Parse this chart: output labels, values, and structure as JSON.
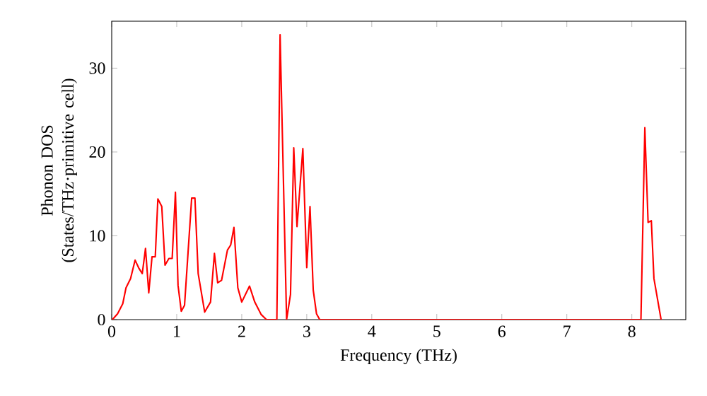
{
  "chart_data": {
    "type": "line",
    "xlabel": "Frequency (THz)",
    "ylabel": "Phonon DOS (States/THz·primitive cell)",
    "xlim": [
      0,
      8.83
    ],
    "ylim": [
      0,
      35.6
    ],
    "xticks": [
      0,
      1,
      2,
      3,
      4,
      5,
      6,
      7,
      8
    ],
    "yticks": [
      0,
      10,
      20,
      30
    ],
    "grid": false,
    "series": [
      {
        "color": "#ff0000",
        "x": [
          0.01,
          0.09,
          0.17,
          0.22,
          0.29,
          0.36,
          0.42,
          0.47,
          0.52,
          0.57,
          0.62,
          0.67,
          0.71,
          0.77,
          0.82,
          0.88,
          0.93,
          0.98,
          1.02,
          1.07,
          1.12,
          1.23,
          1.28,
          1.33,
          1.43,
          1.52,
          1.58,
          1.63,
          1.69,
          1.78,
          1.83,
          1.88,
          1.94,
          2.0,
          2.12,
          2.2,
          2.3,
          2.38,
          2.54,
          2.59,
          2.69,
          2.75,
          2.8,
          2.85,
          2.94,
          3.0,
          3.05,
          3.1,
          3.15,
          3.2,
          8.14,
          8.2,
          8.25,
          8.3,
          8.34,
          8.45
        ],
        "values": [
          0,
          0.7,
          1.9,
          3.8,
          4.9,
          7.1,
          6.1,
          5.5,
          8.5,
          3.2,
          7.5,
          7.5,
          14.4,
          13.5,
          6.5,
          7.3,
          7.3,
          15.2,
          4.1,
          1.0,
          1.7,
          14.5,
          14.5,
          5.5,
          0.9,
          2.1,
          7.9,
          4.4,
          4.7,
          8.3,
          8.9,
          11.0,
          3.8,
          2.1,
          4.0,
          2.1,
          0.6,
          0,
          0,
          34.0,
          0,
          3.0,
          20.5,
          11.1,
          20.4,
          6.2,
          13.5,
          3.5,
          0.7,
          0,
          0,
          22.9,
          11.6,
          11.8,
          4.9,
          0
        ]
      }
    ]
  }
}
